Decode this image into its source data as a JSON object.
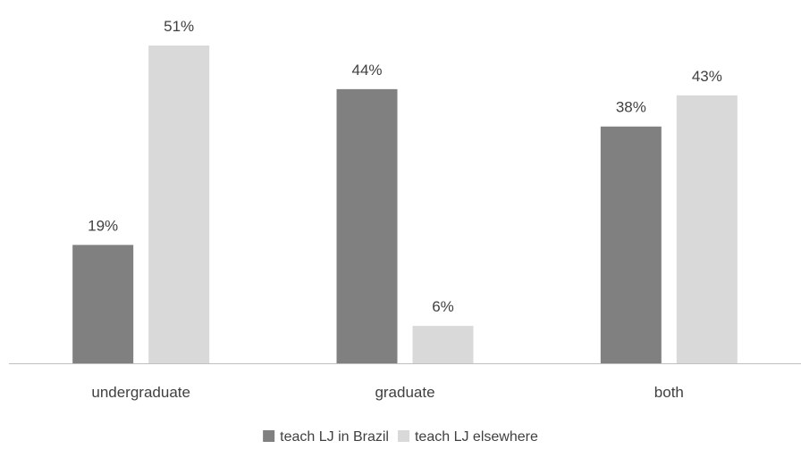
{
  "chart_data": {
    "type": "bar",
    "title": "",
    "xlabel": "",
    "ylabel": "",
    "categories": [
      "undergraduate",
      "graduate",
      "both"
    ],
    "series": [
      {
        "name": "teach LJ in Brazil",
        "color": "#808080",
        "values": [
          19,
          44,
          38
        ],
        "labels": [
          "19%",
          "44%",
          "38%"
        ]
      },
      {
        "name": "teach LJ elsewhere",
        "color": "#d9d9d9",
        "values": [
          51,
          6,
          43
        ],
        "labels": [
          "51%",
          "6%",
          "43%"
        ]
      }
    ],
    "ylim": [
      0,
      51
    ],
    "grid": false,
    "legend_position": "bottom",
    "axis_color": "#bfbfbf"
  }
}
